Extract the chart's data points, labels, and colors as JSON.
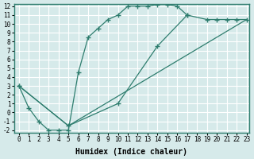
{
  "xlabel": "Humidex (Indice chaleur)",
  "background_color": "#d6eaea",
  "grid_color": "#ffffff",
  "line_color": "#2e7d6e",
  "xlim": [
    -0.5,
    23.3
  ],
  "ylim": [
    -2.3,
    12.3
  ],
  "xticks": [
    0,
    1,
    2,
    3,
    4,
    5,
    6,
    7,
    8,
    9,
    10,
    11,
    12,
    13,
    14,
    15,
    16,
    17,
    18,
    19,
    20,
    21,
    22,
    23
  ],
  "yticks": [
    -2,
    -1,
    0,
    1,
    2,
    3,
    4,
    5,
    6,
    7,
    8,
    9,
    10,
    11,
    12
  ],
  "curve1_x": [
    0,
    1,
    2,
    3,
    4,
    5,
    6,
    7,
    8,
    9,
    10,
    11,
    12,
    13,
    14,
    15,
    16,
    17
  ],
  "curve1_y": [
    3,
    0.5,
    -1,
    -2,
    -2,
    -2,
    4.5,
    8.5,
    9.5,
    10.5,
    11,
    12,
    12,
    12,
    12.2,
    12.2,
    12,
    11
  ],
  "line2_x": [
    0,
    5,
    23
  ],
  "line2_y": [
    3,
    -1.5,
    10.5
  ],
  "curve3_x": [
    0,
    5,
    10,
    14,
    17,
    19,
    20,
    21,
    22,
    23
  ],
  "curve3_y": [
    3,
    -1.5,
    1,
    7.5,
    11,
    10.5,
    10.5,
    10.5,
    10.5,
    10.5
  ]
}
